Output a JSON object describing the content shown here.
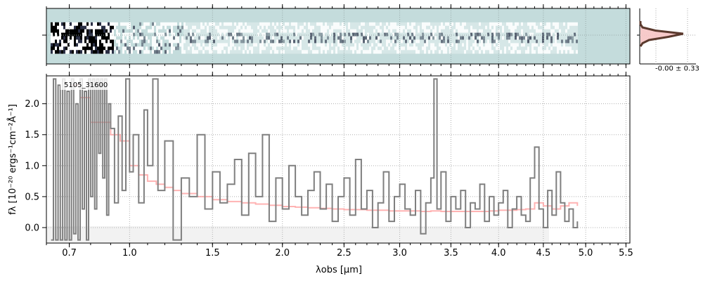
{
  "chart_data": [
    {
      "type": "heatmap",
      "panel": "2d-spectrum",
      "colormap": [
        "#c4dcdc",
        "#ffffff",
        "#2a2f45",
        "#000000"
      ],
      "background": "#c4dcdc",
      "grid": true,
      "x_ticks": [
        "0.7",
        "1.0",
        "1.5",
        "2.0",
        "2.5",
        "3.0",
        "3.5",
        "4.0",
        "4.5",
        "5.0",
        "5.5"
      ],
      "xlim": [
        0.6,
        5.55
      ]
    },
    {
      "type": "line",
      "panel": "spatial-profile",
      "annotation": "-0.00 ± 0.33",
      "colors": {
        "fill": "#f6c4c4",
        "line": "#5b3a2e"
      },
      "profile": [
        0.0,
        0.0,
        0.05,
        0.35,
        1.0,
        0.65,
        0.2,
        0.05,
        0.0
      ]
    },
    {
      "type": "line",
      "panel": "1d-spectrum",
      "label": "5105_31600",
      "xlabel": "λobs [μm]",
      "ylabel": "fλ [10⁻²⁰ ergs⁻¹cm⁻²Å⁻¹]",
      "x_ticks": [
        "0.7",
        "1.0",
        "1.5",
        "2.0",
        "2.5",
        "3.0",
        "3.5",
        "4.0",
        "4.5",
        "5.0",
        "5.5"
      ],
      "y_ticks": [
        "0.0",
        "0.5",
        "1.0",
        "1.5",
        "2.0"
      ],
      "ylim": [
        -0.25,
        2.45
      ],
      "xlim": [
        0.6,
        5.55
      ],
      "grid": true,
      "colors": {
        "data": "#7f7f7f",
        "model": "#ff9a9a"
      },
      "series": [
        {
          "role": "data",
          "x": [
            0.62,
            0.63,
            0.64,
            0.65,
            0.66,
            0.67,
            0.68,
            0.69,
            0.7,
            0.71,
            0.72,
            0.73,
            0.74,
            0.75,
            0.76,
            0.77,
            0.78,
            0.79,
            0.8,
            0.81,
            0.82,
            0.83,
            0.84,
            0.85,
            0.86,
            0.87,
            0.88,
            0.89,
            0.9,
            0.92,
            0.94,
            0.96,
            0.98,
            1.0,
            1.02,
            1.05,
            1.08,
            1.1,
            1.13,
            1.16,
            1.2,
            1.25,
            1.3,
            1.35,
            1.4,
            1.45,
            1.5,
            1.55,
            1.6,
            1.65,
            1.7,
            1.75,
            1.8,
            1.85,
            1.9,
            1.95,
            2.0,
            2.05,
            2.1,
            2.15,
            2.2,
            2.25,
            2.3,
            2.35,
            2.4,
            2.45,
            2.5,
            2.55,
            2.6,
            2.65,
            2.7,
            2.75,
            2.8,
            2.85,
            2.9,
            2.95,
            3.0,
            3.05,
            3.1,
            3.15,
            3.2,
            3.25,
            3.3,
            3.33,
            3.36,
            3.4,
            3.45,
            3.5,
            3.55,
            3.6,
            3.65,
            3.7,
            3.75,
            3.8,
            3.85,
            3.9,
            3.95,
            4.0,
            4.05,
            4.1,
            4.15,
            4.2,
            4.25,
            4.3,
            4.35,
            4.4,
            4.45,
            4.5,
            4.55,
            4.6,
            4.65,
            4.7,
            4.75,
            4.8,
            4.85,
            4.9
          ],
          "y": [
            -0.2,
            2.4,
            -0.2,
            2.3,
            -0.2,
            2.4,
            -0.2,
            2.2,
            -0.2,
            2.4,
            -0.1,
            2.0,
            -0.2,
            2.4,
            0.3,
            2.2,
            -0.2,
            2.4,
            0.5,
            2.4,
            0.3,
            2.4,
            1.2,
            2.4,
            0.8,
            2.4,
            0.2,
            2.0,
            1.6,
            0.4,
            1.8,
            0.6,
            2.4,
            0.9,
            1.5,
            0.4,
            1.9,
            1.0,
            2.4,
            0.6,
            1.4,
            -0.2,
            0.8,
            0.5,
            1.5,
            0.3,
            0.9,
            0.4,
            0.7,
            1.1,
            0.2,
            1.2,
            0.5,
            1.5,
            0.1,
            0.8,
            0.3,
            1.0,
            0.5,
            0.2,
            0.6,
            0.9,
            0.3,
            0.7,
            0.1,
            0.5,
            0.8,
            0.2,
            1.1,
            0.3,
            0.6,
            0.0,
            0.4,
            0.9,
            0.1,
            0.5,
            0.7,
            0.3,
            0.2,
            0.6,
            -0.1,
            0.4,
            0.8,
            2.4,
            0.3,
            0.9,
            0.1,
            0.5,
            0.3,
            0.6,
            0.0,
            0.4,
            0.3,
            0.7,
            0.1,
            0.5,
            0.2,
            0.4,
            0.6,
            0.0,
            0.3,
            0.5,
            0.2,
            0.1,
            0.8,
            1.3,
            0.3,
            0.0,
            0.6,
            0.2,
            0.9,
            0.4,
            0.1,
            0.3,
            0.0,
            0.1
          ]
        },
        {
          "role": "model",
          "x": [
            0.7,
            0.75,
            0.8,
            0.85,
            0.9,
            0.95,
            1.0,
            1.05,
            1.1,
            1.15,
            1.2,
            1.25,
            1.3,
            1.4,
            1.5,
            1.6,
            1.7,
            1.8,
            1.9,
            2.0,
            2.1,
            2.2,
            2.3,
            2.4,
            2.5,
            2.6,
            2.7,
            2.8,
            2.9,
            3.0,
            3.1,
            3.2,
            3.3,
            3.4,
            3.5,
            3.6,
            3.7,
            3.8,
            3.9,
            4.0,
            4.1,
            4.2,
            4.3,
            4.4,
            4.5,
            4.6,
            4.7,
            4.8,
            4.9
          ],
          "y": [
            2.3,
            2.1,
            1.7,
            1.7,
            1.5,
            1.4,
            1.0,
            0.85,
            0.75,
            0.7,
            0.65,
            0.6,
            0.55,
            0.5,
            0.45,
            0.42,
            0.4,
            0.38,
            0.36,
            0.34,
            0.33,
            0.32,
            0.31,
            0.3,
            0.29,
            0.29,
            0.28,
            0.28,
            0.27,
            0.27,
            0.27,
            0.26,
            0.27,
            0.26,
            0.26,
            0.26,
            0.26,
            0.26,
            0.27,
            0.28,
            0.28,
            0.29,
            0.3,
            0.4,
            0.35,
            0.3,
            0.35,
            0.4,
            0.35
          ]
        }
      ]
    }
  ]
}
